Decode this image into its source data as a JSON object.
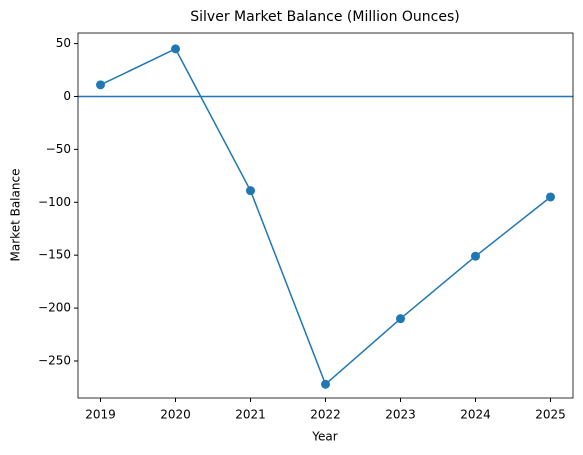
{
  "chart_data": {
    "type": "line",
    "title": "Silver Market Balance (Million Ounces)",
    "x_label": "Year",
    "y_label": "Market Balance",
    "x": [
      2019,
      2020,
      2021,
      2022,
      2023,
      2024,
      2025
    ],
    "values": [
      11,
      45,
      -89,
      -272,
      -210,
      -151,
      -95
    ],
    "color": "#1f77b4",
    "markers": true,
    "hline": 0,
    "xlim": [
      2018.7,
      2025.3
    ],
    "xticks": [
      2019,
      2020,
      2021,
      2022,
      2023,
      2024,
      2025
    ],
    "ylim": [
      -285,
      60
    ],
    "yticks": [
      {
        "value": -250,
        "label": "−250"
      },
      {
        "value": -200,
        "label": "−200"
      },
      {
        "value": -150,
        "label": "−150"
      },
      {
        "value": -100,
        "label": "−100"
      },
      {
        "value": -50,
        "label": "−50"
      },
      0,
      50
    ],
    "grid": false
  }
}
